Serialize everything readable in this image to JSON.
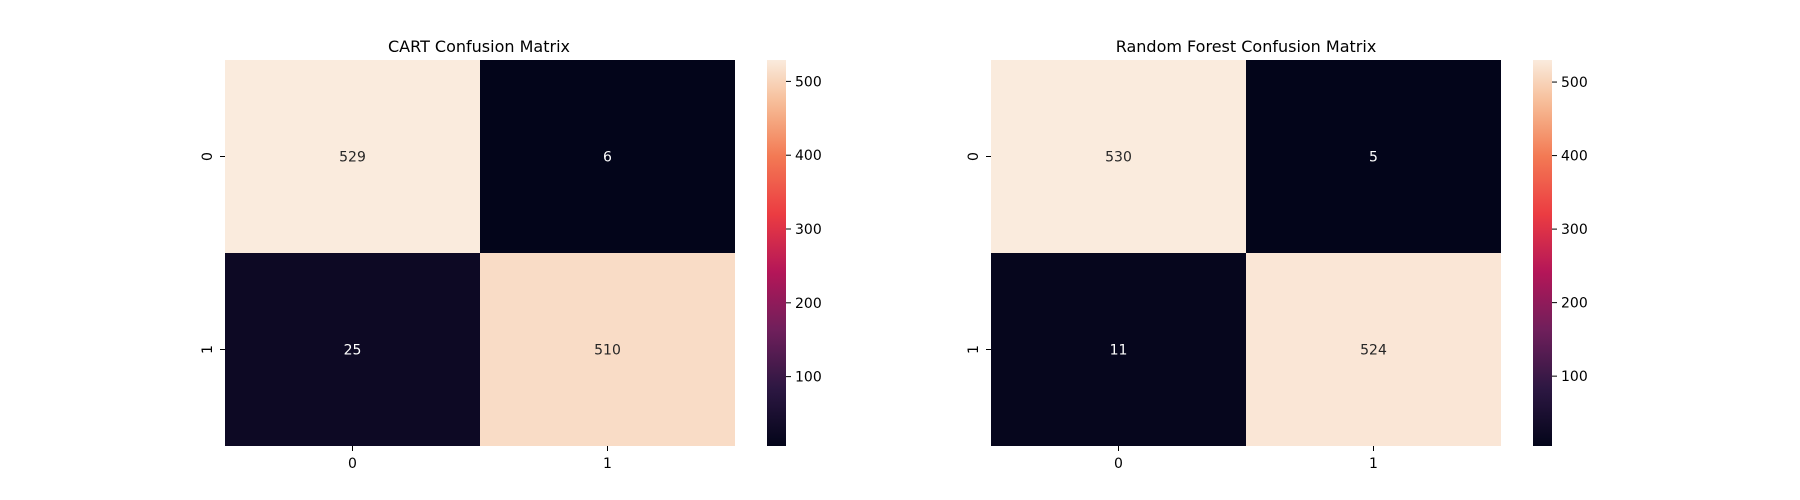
{
  "chart_data": [
    {
      "type": "heatmap",
      "title": "CART Confusion Matrix",
      "xlabel": "",
      "ylabel": "",
      "x_categories": [
        "0",
        "1"
      ],
      "y_categories": [
        "0",
        "1"
      ],
      "values": [
        [
          529,
          6
        ],
        [
          25,
          510
        ]
      ],
      "colormap": "rocket",
      "colorbar": {
        "min": 6,
        "max": 529,
        "ticks": [
          100,
          200,
          300,
          400,
          500
        ]
      },
      "grid": false,
      "legend": "none"
    },
    {
      "type": "heatmap",
      "title": "Random Forest Confusion Matrix",
      "xlabel": "",
      "ylabel": "",
      "x_categories": [
        "0",
        "1"
      ],
      "y_categories": [
        "0",
        "1"
      ],
      "values": [
        [
          530,
          5
        ],
        [
          11,
          524
        ]
      ],
      "colormap": "rocket",
      "colorbar": {
        "min": 5,
        "max": 530,
        "ticks": [
          100,
          200,
          300,
          400,
          500
        ]
      },
      "grid": false,
      "legend": "none"
    }
  ]
}
